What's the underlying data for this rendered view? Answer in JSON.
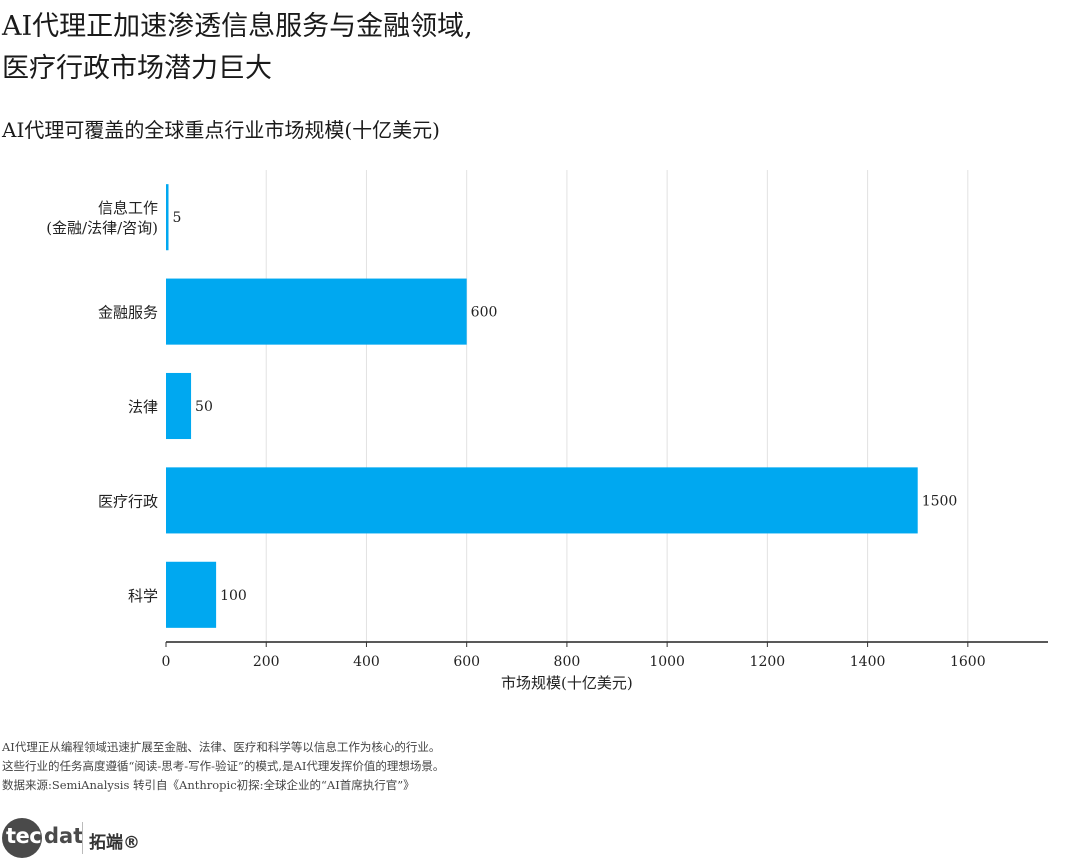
{
  "title_line1": "AI代理正加速渗透信息服务与金融领域,",
  "title_line2": "医疗行政市场潜力巨大",
  "subtitle": "AI代理可覆盖的全球重点行业市场规模(十亿美元)",
  "notes": [
    "AI代理正从编程领域迅速扩展至金融、法律、医疗和科学等以信息工作为核心的行业。",
    "这些行业的任务高度遵循“阅读-思考-写作-验证”的模式,是AI代理发挥价值的理想场景。",
    "数据来源:SemiAnalysis 转引自《Anthropic初探:全球企业的“AI首席执行官”》"
  ],
  "logo": {
    "tec": "tec",
    "dat": "dat",
    "cn": "拓端®"
  },
  "chart_data": {
    "type": "bar",
    "orientation": "horizontal",
    "categories": [
      [
        "信息工作",
        "(金融/法律/咨询)"
      ],
      [
        "金融服务"
      ],
      [
        "法律"
      ],
      [
        "医疗行政"
      ],
      [
        "科学"
      ]
    ],
    "values": [
      5,
      600,
      50,
      1500,
      100
    ],
    "value_labels": [
      "5",
      "600",
      "50",
      "1500",
      "100"
    ],
    "xlabel": "市场规模(十亿美元)",
    "xlim": [
      0,
      1760
    ],
    "xticks": [
      0,
      200,
      400,
      600,
      800,
      1000,
      1200,
      1400,
      1600
    ],
    "grid": true,
    "bar_color": "#00a8f0"
  }
}
